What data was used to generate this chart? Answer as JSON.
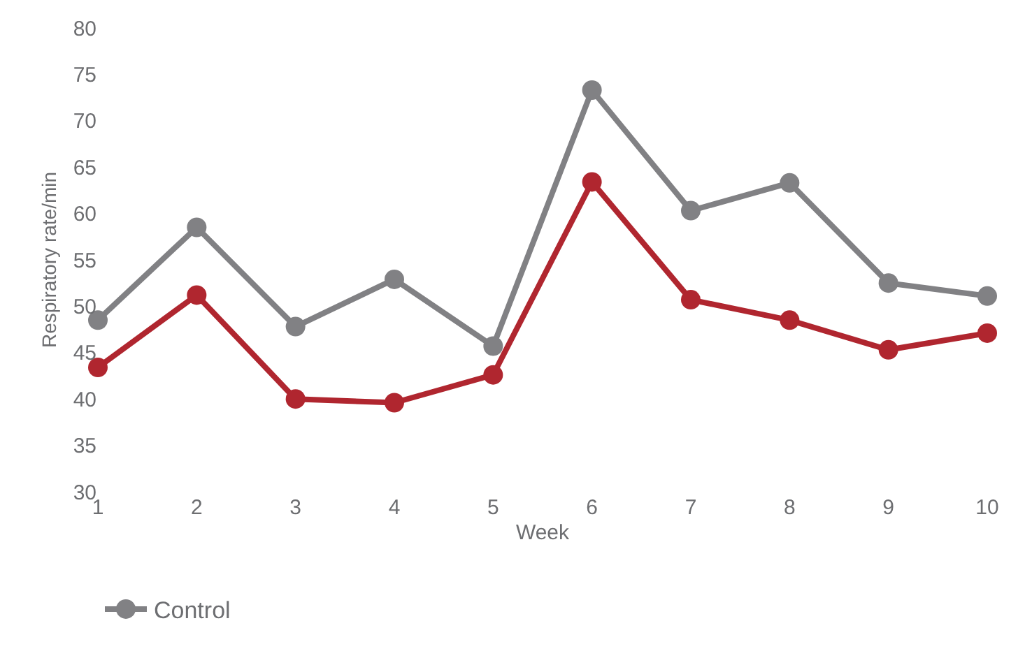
{
  "chart_data": {
    "type": "line",
    "xlabel": "Week",
    "ylabel": "Respiratory rate/min",
    "x": [
      1,
      2,
      3,
      4,
      5,
      6,
      7,
      8,
      9,
      10
    ],
    "series": [
      {
        "name": "Control",
        "color": "#818184",
        "values": [
          48.5,
          58.5,
          47.8,
          52.9,
          45.7,
          73.3,
          60.3,
          63.3,
          52.5,
          51.1
        ]
      },
      {
        "color": "#b0262f",
        "values": [
          43.4,
          51.2,
          40.0,
          39.6,
          42.6,
          63.4,
          50.7,
          48.5,
          45.3,
          47.1
        ]
      }
    ],
    "xlim": [
      1,
      10
    ],
    "xticks": [
      1,
      2,
      3,
      4,
      5,
      6,
      7,
      8,
      9,
      10
    ],
    "ylim": [
      30,
      80
    ],
    "yticks": [
      30,
      35,
      40,
      45,
      50,
      55,
      60,
      65,
      70,
      75,
      80
    ],
    "legend": "bottom left",
    "marker": "circle",
    "line_style": "solid"
  }
}
